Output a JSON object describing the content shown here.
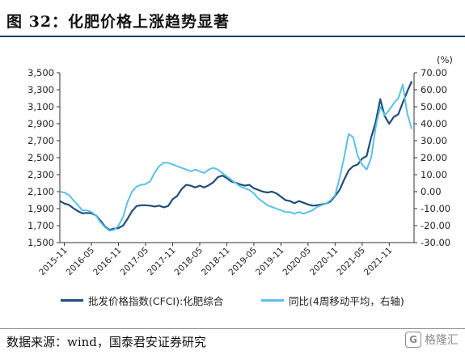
{
  "header": {
    "title": "图 32：化肥价格上涨趋势显著"
  },
  "footer": {
    "source": "数据来源：wind，国泰君安证券研究",
    "watermark": "格隆汇",
    "watermark_logo": "G"
  },
  "chart_data": {
    "type": "line",
    "title": "图 32：化肥价格上涨趋势显著",
    "xlabel": "",
    "ylabel_left": "",
    "ylabel_right": "(%)",
    "x_ticks": [
      "2015-11",
      "2016-05",
      "2016-11",
      "2017-05",
      "2017-11",
      "2018-05",
      "2018-11",
      "2019-05",
      "2019-11",
      "2020-05",
      "2020-11",
      "2021-05",
      "2021-11"
    ],
    "y_left_ticks": [
      "1,500",
      "1,700",
      "1,900",
      "2,100",
      "2,300",
      "2,500",
      "2,700",
      "2,900",
      "3,100",
      "3,300",
      "3,500"
    ],
    "y_right_ticks": [
      "-30.00",
      "-20.00",
      "-10.00",
      "0.00",
      "10.00",
      "20.00",
      "30.00",
      "40.00",
      "50.00",
      "60.00",
      "70.00"
    ],
    "ylim_left": [
      1500,
      3500
    ],
    "ylim_right": [
      -30,
      70
    ],
    "legend_position": "bottom",
    "grid": false,
    "x_start": "2015-10",
    "colors": {
      "left_series": "#1f4e79",
      "right_series": "#5bc0e8"
    },
    "series": [
      {
        "name": "批发价格指数(CFCI):化肥综合",
        "axis": "left",
        "points": [
          [
            "2015-10",
            1990
          ],
          [
            "2015-11",
            1960
          ],
          [
            "2015-12",
            1945
          ],
          [
            "2016-01",
            1905
          ],
          [
            "2016-02",
            1870
          ],
          [
            "2016-03",
            1845
          ],
          [
            "2016-04",
            1850
          ],
          [
            "2016-05",
            1845
          ],
          [
            "2016-06",
            1820
          ],
          [
            "2016-07",
            1760
          ],
          [
            "2016-08",
            1690
          ],
          [
            "2016-09",
            1650
          ],
          [
            "2016-10",
            1665
          ],
          [
            "2016-11",
            1670
          ],
          [
            "2016-12",
            1700
          ],
          [
            "2017-01",
            1780
          ],
          [
            "2017-02",
            1870
          ],
          [
            "2017-03",
            1930
          ],
          [
            "2017-04",
            1940
          ],
          [
            "2017-05",
            1940
          ],
          [
            "2017-06",
            1935
          ],
          [
            "2017-07",
            1925
          ],
          [
            "2017-08",
            1935
          ],
          [
            "2017-09",
            1915
          ],
          [
            "2017-10",
            1930
          ],
          [
            "2017-11",
            2010
          ],
          [
            "2017-12",
            2050
          ],
          [
            "2018-01",
            2130
          ],
          [
            "2018-02",
            2180
          ],
          [
            "2018-03",
            2170
          ],
          [
            "2018-04",
            2150
          ],
          [
            "2018-05",
            2170
          ],
          [
            "2018-06",
            2150
          ],
          [
            "2018-07",
            2175
          ],
          [
            "2018-08",
            2210
          ],
          [
            "2018-09",
            2270
          ],
          [
            "2018-10",
            2290
          ],
          [
            "2018-11",
            2260
          ],
          [
            "2018-12",
            2220
          ],
          [
            "2019-01",
            2205
          ],
          [
            "2019-02",
            2185
          ],
          [
            "2019-03",
            2170
          ],
          [
            "2019-04",
            2180
          ],
          [
            "2019-05",
            2140
          ],
          [
            "2019-06",
            2120
          ],
          [
            "2019-07",
            2100
          ],
          [
            "2019-08",
            2090
          ],
          [
            "2019-09",
            2100
          ],
          [
            "2019-10",
            2080
          ],
          [
            "2019-11",
            2040
          ],
          [
            "2019-12",
            2000
          ],
          [
            "2020-01",
            1990
          ],
          [
            "2020-02",
            1965
          ],
          [
            "2020-03",
            1990
          ],
          [
            "2020-04",
            1970
          ],
          [
            "2020-05",
            1950
          ],
          [
            "2020-06",
            1935
          ],
          [
            "2020-07",
            1940
          ],
          [
            "2020-08",
            1950
          ],
          [
            "2020-09",
            1960
          ],
          [
            "2020-10",
            1985
          ],
          [
            "2020-11",
            2050
          ],
          [
            "2020-12",
            2120
          ],
          [
            "2021-01",
            2240
          ],
          [
            "2021-02",
            2350
          ],
          [
            "2021-03",
            2400
          ],
          [
            "2021-04",
            2420
          ],
          [
            "2021-05",
            2490
          ],
          [
            "2021-06",
            2520
          ],
          [
            "2021-07",
            2740
          ],
          [
            "2021-08",
            2920
          ],
          [
            "2021-09",
            3190
          ],
          [
            "2021-10",
            2990
          ],
          [
            "2021-11",
            2900
          ],
          [
            "2021-12",
            2980
          ],
          [
            "2022-01",
            3010
          ],
          [
            "2022-02",
            3150
          ],
          [
            "2022-03",
            3280
          ],
          [
            "2022-04",
            3400
          ]
        ]
      },
      {
        "name": "同比(4周移动平均，右轴)",
        "axis": "right",
        "points": [
          [
            "2015-10",
            0
          ],
          [
            "2015-11",
            -0.5
          ],
          [
            "2015-12",
            -2
          ],
          [
            "2016-01",
            -5
          ],
          [
            "2016-02",
            -8
          ],
          [
            "2016-03",
            -11
          ],
          [
            "2016-04",
            -11
          ],
          [
            "2016-05",
            -12
          ],
          [
            "2016-06",
            -14
          ],
          [
            "2016-07",
            -18
          ],
          [
            "2016-08",
            -21
          ],
          [
            "2016-09",
            -23
          ],
          [
            "2016-10",
            -22.5
          ],
          [
            "2016-11",
            -20
          ],
          [
            "2016-12",
            -15
          ],
          [
            "2017-01",
            -6
          ],
          [
            "2017-02",
            0
          ],
          [
            "2017-03",
            3
          ],
          [
            "2017-04",
            4
          ],
          [
            "2017-05",
            4.5
          ],
          [
            "2017-06",
            6
          ],
          [
            "2017-07",
            11
          ],
          [
            "2017-08",
            15
          ],
          [
            "2017-09",
            17
          ],
          [
            "2017-10",
            17
          ],
          [
            "2017-11",
            16
          ],
          [
            "2017-12",
            15
          ],
          [
            "2018-01",
            14
          ],
          [
            "2018-02",
            13
          ],
          [
            "2018-03",
            12
          ],
          [
            "2018-04",
            13
          ],
          [
            "2018-05",
            12
          ],
          [
            "2018-06",
            11
          ],
          [
            "2018-07",
            13
          ],
          [
            "2018-08",
            14
          ],
          [
            "2018-09",
            13
          ],
          [
            "2018-10",
            11
          ],
          [
            "2018-11",
            9
          ],
          [
            "2018-12",
            7
          ],
          [
            "2019-01",
            5
          ],
          [
            "2019-02",
            3
          ],
          [
            "2019-03",
            2
          ],
          [
            "2019-04",
            1
          ],
          [
            "2019-05",
            -1
          ],
          [
            "2019-06",
            -4
          ],
          [
            "2019-07",
            -6
          ],
          [
            "2019-08",
            -8
          ],
          [
            "2019-09",
            -9
          ],
          [
            "2019-10",
            -10
          ],
          [
            "2019-11",
            -11
          ],
          [
            "2019-12",
            -12
          ],
          [
            "2020-01",
            -12
          ],
          [
            "2020-02",
            -13
          ],
          [
            "2020-03",
            -12
          ],
          [
            "2020-04",
            -13
          ],
          [
            "2020-05",
            -12
          ],
          [
            "2020-06",
            -11
          ],
          [
            "2020-07",
            -9
          ],
          [
            "2020-08",
            -8
          ],
          [
            "2020-09",
            -7
          ],
          [
            "2020-10",
            -5
          ],
          [
            "2020-11",
            -2
          ],
          [
            "2020-12",
            8
          ],
          [
            "2021-01",
            20
          ],
          [
            "2021-02",
            34
          ],
          [
            "2021-03",
            32
          ],
          [
            "2021-04",
            21
          ],
          [
            "2021-05",
            16
          ],
          [
            "2021-06",
            13
          ],
          [
            "2021-07",
            20
          ],
          [
            "2021-08",
            38
          ],
          [
            "2021-09",
            50
          ],
          [
            "2021-10",
            45
          ],
          [
            "2021-11",
            48
          ],
          [
            "2021-12",
            52
          ],
          [
            "2022-01",
            55
          ],
          [
            "2022-02",
            63
          ],
          [
            "2022-03",
            46
          ],
          [
            "2022-04",
            37
          ]
        ]
      }
    ]
  }
}
